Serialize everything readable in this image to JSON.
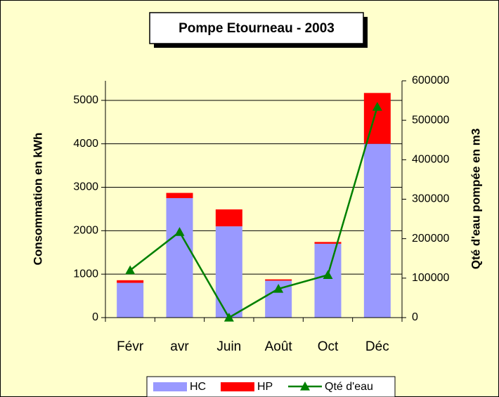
{
  "chart_data": {
    "type": "bar",
    "stacked": true,
    "title": "Pompe Etourneau - 2003",
    "y_label": "Consommation en kWh",
    "y2_label": "Qté d'eau pompée en m3",
    "categories": [
      "Févr",
      "avr",
      "Juin",
      "Août",
      "Oct",
      "Déc"
    ],
    "series": [
      {
        "name": "HC",
        "type": "bar",
        "color": "#9999ff",
        "values": [
          800,
          2750,
          2100,
          850,
          1700,
          4000
        ]
      },
      {
        "name": "HP",
        "type": "bar",
        "color": "#ff0000",
        "values": [
          60,
          120,
          390,
          30,
          40,
          1170
        ]
      },
      {
        "name": "Qté d'eau",
        "type": "line",
        "axis": "y2",
        "color": "#008000",
        "values": [
          120000,
          217000,
          0,
          73000,
          108000,
          534000
        ]
      }
    ],
    "ylim": [
      0,
      5450
    ],
    "yticks": [
      0,
      1000,
      2000,
      3000,
      4000,
      5000
    ],
    "y2lim": [
      0,
      600000
    ],
    "y2ticks": [
      0,
      100000,
      200000,
      300000,
      400000,
      500000,
      600000
    ],
    "grid": true,
    "legend": "bottom"
  }
}
